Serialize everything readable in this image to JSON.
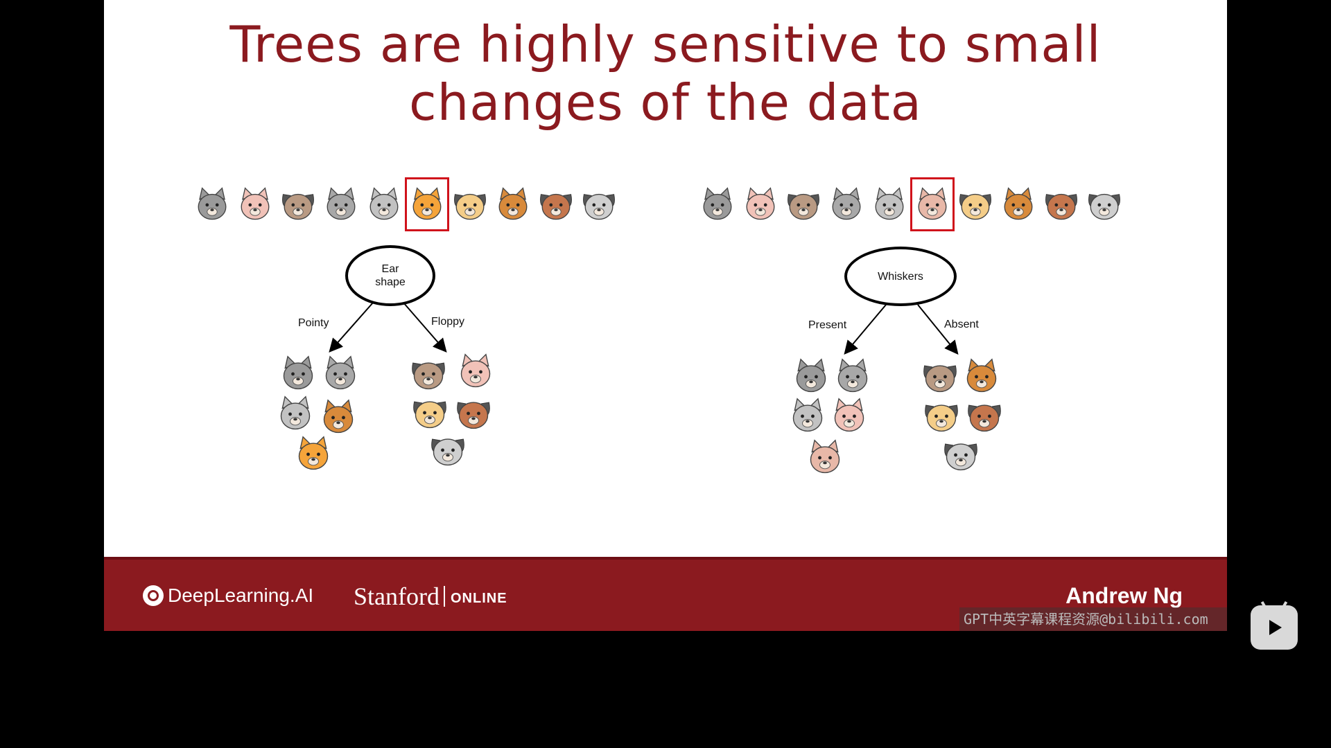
{
  "slide": {
    "title_line1": "Trees are highly sensitive to small",
    "title_line2": "changes of the data"
  },
  "left_tree": {
    "root": "Ear\nshape",
    "left_branch": "Pointy",
    "right_branch": "Floppy",
    "row": [
      "cat",
      "cat",
      "dog",
      "cat",
      "cat",
      "cat-selected",
      "dog",
      "cat",
      "dog",
      "dog"
    ]
  },
  "right_tree": {
    "root": "Whiskers",
    "left_branch": "Present",
    "right_branch": "Absent",
    "row": [
      "cat",
      "cat",
      "dog",
      "cat",
      "cat",
      "cat-selected",
      "dog",
      "cat",
      "dog",
      "dog"
    ]
  },
  "footer": {
    "brand": "DeepLearning.AI",
    "university": "Stanford",
    "university_suffix": "ONLINE",
    "presenter": "Andrew Ng"
  },
  "overlay": {
    "watermark": "GPT中英字幕课程资源@bilibili.com"
  },
  "colors": {
    "title": "#8b1a1f",
    "footer": "#8b1a1f",
    "highlight": "#d0121b"
  }
}
